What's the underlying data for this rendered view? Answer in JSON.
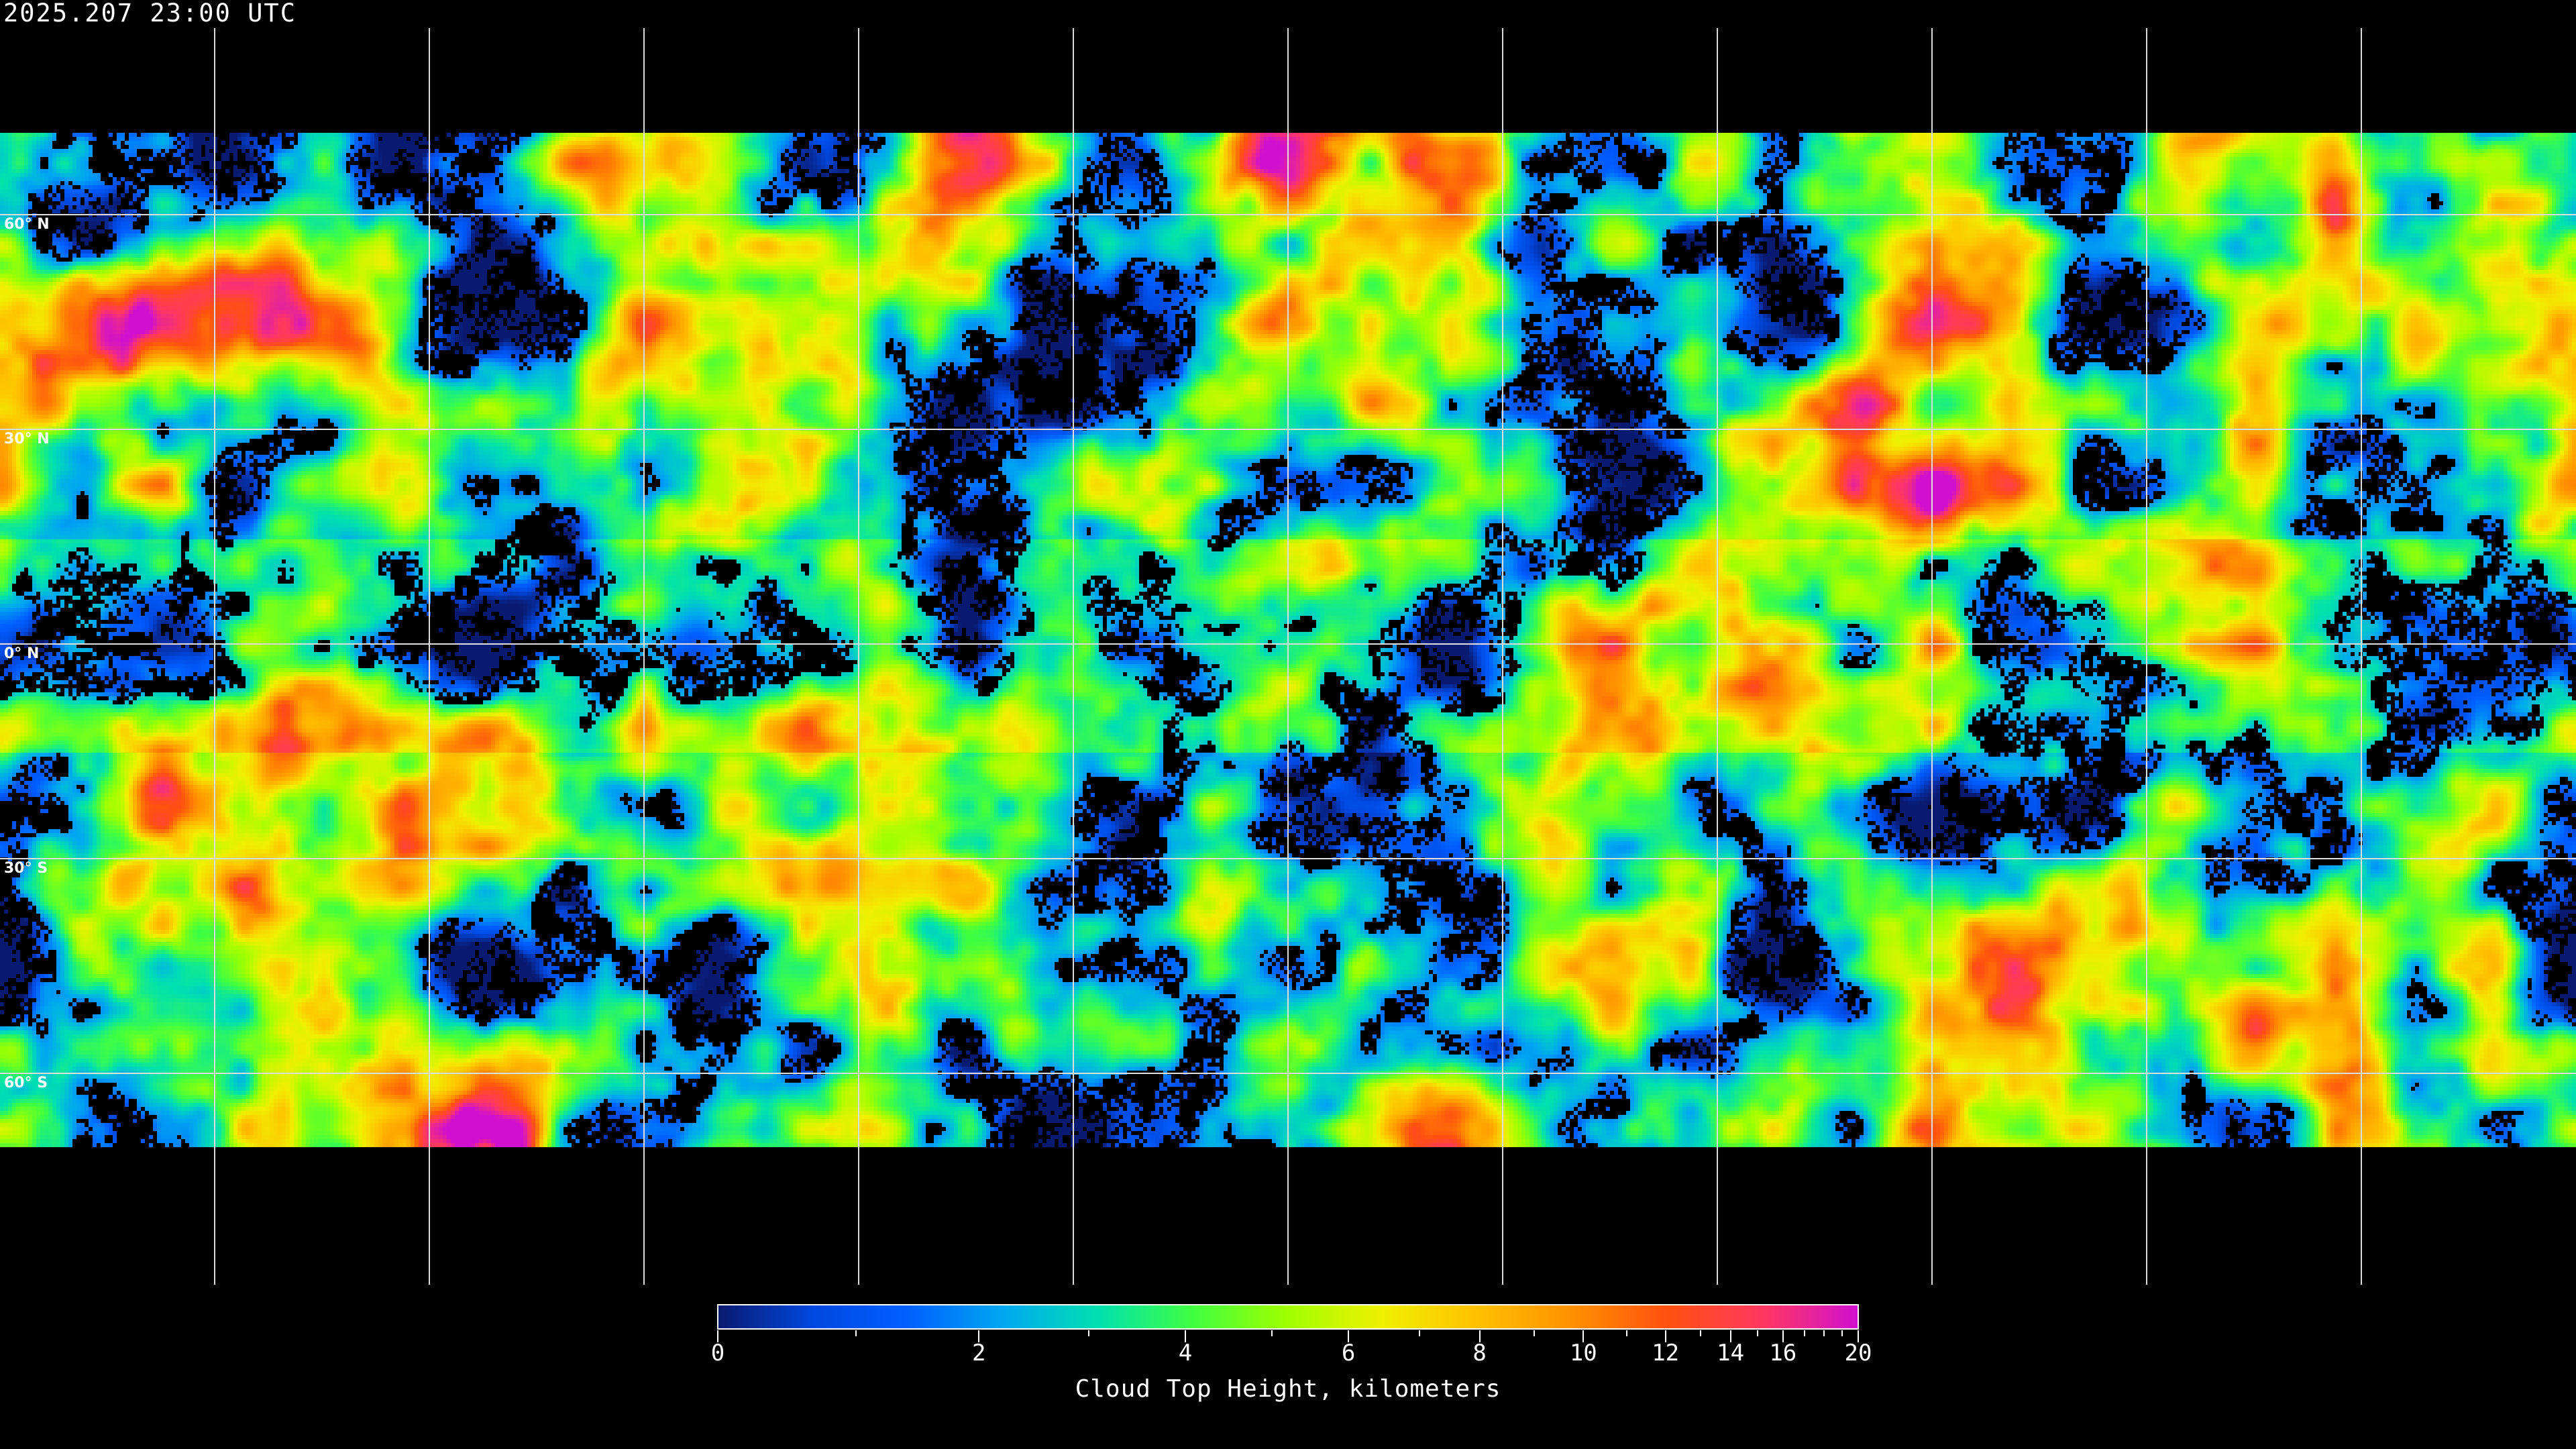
{
  "header": {
    "timestamp": "2025.207 23:00 UTC"
  },
  "map": {
    "projection": "equirectangular",
    "latitude_labels": [
      "60° N",
      "30° N",
      "0° N",
      "30° S",
      "60° S"
    ],
    "graticule_spacing_degrees": 30
  },
  "colorbar": {
    "title": "Cloud Top Height, kilometers",
    "min": 0,
    "max": 20,
    "major_ticks": [
      "0",
      "2",
      "4",
      "6",
      "8",
      "10",
      "12",
      "14",
      "16",
      "20"
    ],
    "minor_ticks": [
      1,
      3,
      5,
      7,
      9,
      11,
      13,
      15,
      17,
      18,
      19
    ],
    "colors": [
      "#0a1a70",
      "#0048e0",
      "#0060ff",
      "#00a8f0",
      "#00e0b0",
      "#40ff40",
      "#a0ff00",
      "#f0f000",
      "#ffc000",
      "#ff9000",
      "#ff5010",
      "#ff3860",
      "#d010d0"
    ]
  }
}
